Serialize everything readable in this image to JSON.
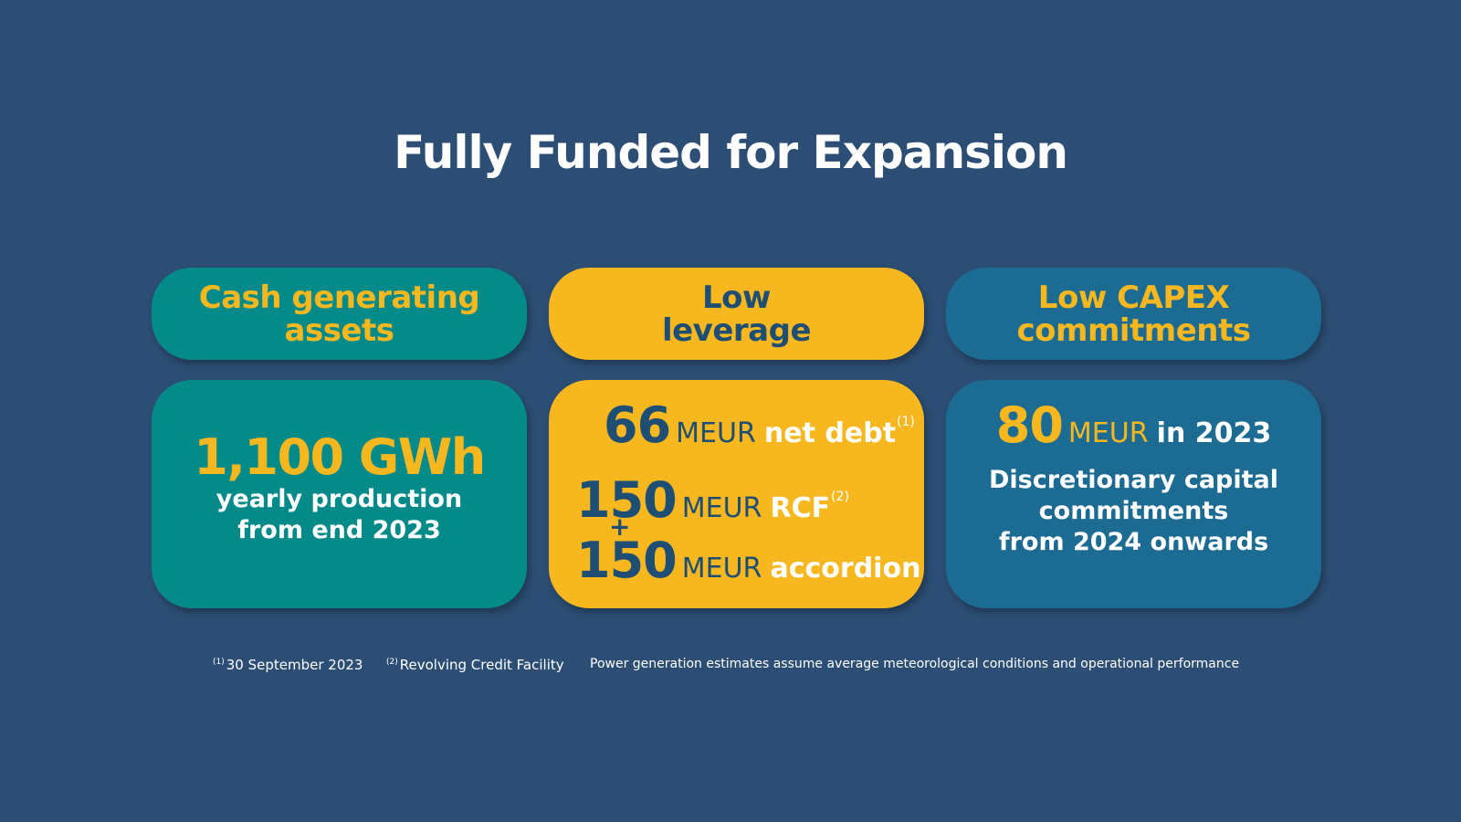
{
  "title": "Fully Funded for Expansion",
  "cards": [
    {
      "header": [
        "Cash generating",
        "assets"
      ],
      "value": "1,100 GWh",
      "lines": [
        "yearly production",
        "from end 2023"
      ],
      "color": "#058a8a"
    },
    {
      "header": [
        "Low",
        "leverage"
      ],
      "rows": [
        {
          "num": "66",
          "unit": "MEUR",
          "label": "net debt",
          "sup": "(1)"
        },
        {
          "num": "150",
          "unit": "MEUR",
          "label": "RCF",
          "sup": "(2)"
        },
        {
          "num": "150",
          "unit": "MEUR",
          "label": "accordion"
        }
      ],
      "plus": "+",
      "color": "#f7b81f"
    },
    {
      "header": [
        "Low CAPEX",
        "commitments"
      ],
      "num": "80",
      "unit": "MEUR",
      "label": "in 2023",
      "lines": [
        "Discretionary capital",
        "commitments",
        "from 2024 onwards"
      ],
      "color": "#1c6b93"
    }
  ],
  "footnotes": [
    {
      "sup": "(1)",
      "text": "30 September 2023"
    },
    {
      "sup": "(2)",
      "text": "Revolving Credit Facility"
    },
    {
      "text": "Power generation estimates assume average meteorological conditions and operational performance"
    }
  ]
}
